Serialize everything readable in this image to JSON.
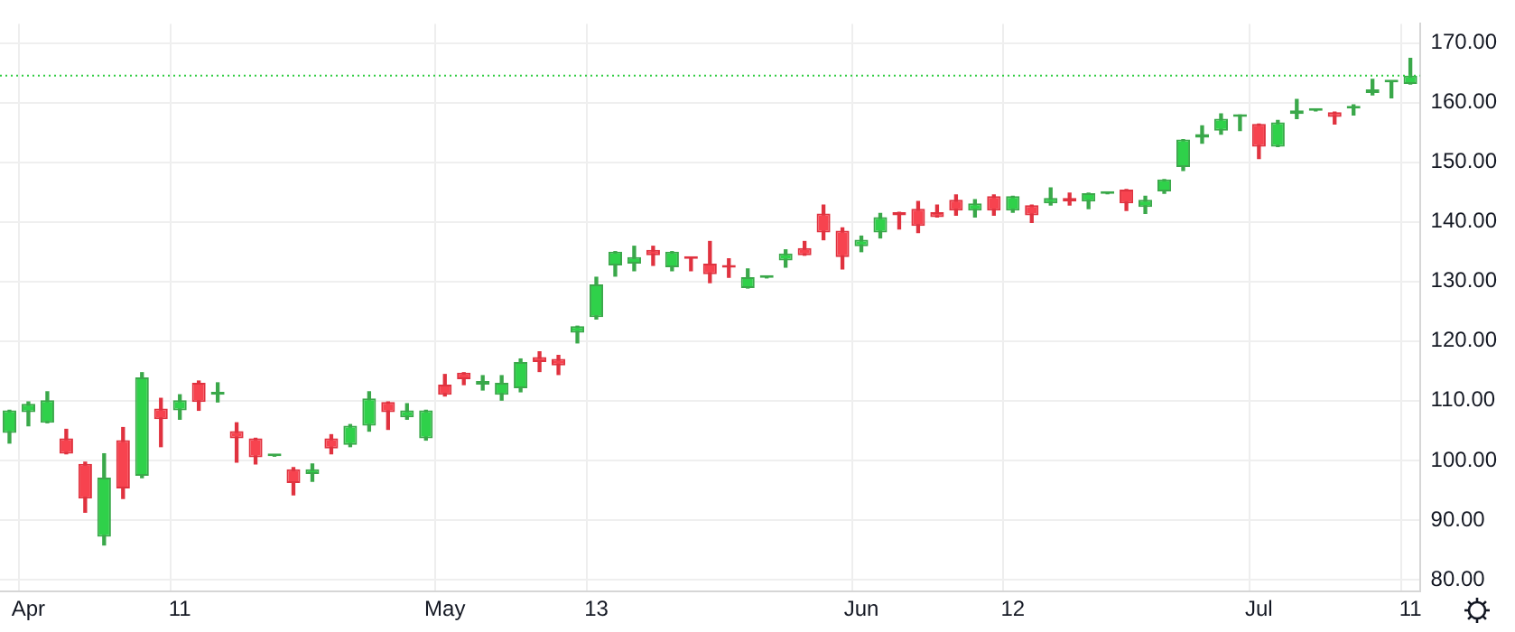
{
  "chart_data": {
    "type": "candlestick",
    "categories": [
      null,
      "Apr",
      null,
      null,
      null,
      null,
      null,
      null,
      null,
      "11",
      null,
      null,
      null,
      null,
      null,
      null,
      null,
      null,
      null,
      null,
      null,
      null,
      null,
      "May",
      null,
      null,
      null,
      null,
      null,
      null,
      null,
      "13",
      null,
      null,
      null,
      null,
      null,
      null,
      null,
      null,
      null,
      null,
      null,
      null,
      null,
      "Jun",
      null,
      null,
      null,
      null,
      null,
      null,
      null,
      "12",
      null,
      null,
      null,
      null,
      null,
      null,
      null,
      null,
      null,
      null,
      null,
      null,
      "Jul",
      null,
      null,
      null,
      null,
      null,
      null,
      null,
      "11"
    ],
    "ohlc": [
      [
        104.6,
        108.4,
        102.9,
        108.4
      ],
      [
        108.1,
        109.8,
        105.8,
        109.5
      ],
      [
        106.3,
        111.5,
        106.3,
        110.1
      ],
      [
        103.7,
        105.2,
        101.1,
        101.1
      ],
      [
        99.4,
        99.7,
        91.3,
        93.6
      ],
      [
        87.2,
        101.1,
        85.8,
        97.1
      ],
      [
        103.4,
        105.5,
        93.6,
        95.3
      ],
      [
        97.4,
        114.7,
        97.1,
        113.9
      ],
      [
        108.7,
        110.4,
        102.3,
        106.9
      ],
      [
        108.4,
        111.0,
        106.9,
        110.1
      ],
      [
        113.0,
        113.3,
        108.4,
        109.8
      ],
      [
        111.0,
        113.0,
        109.8,
        111.5
      ],
      [
        104.9,
        106.3,
        99.7,
        103.7
      ],
      [
        103.7,
        103.7,
        99.4,
        100.5
      ],
      [
        100.7,
        100.9,
        100.7,
        100.9
      ],
      [
        98.5,
        98.8,
        94.2,
        96.2
      ],
      [
        97.7,
        99.4,
        96.5,
        98.5
      ],
      [
        103.7,
        104.3,
        101.1,
        102.0
      ],
      [
        102.6,
        106.0,
        102.3,
        105.8
      ],
      [
        105.8,
        111.5,
        104.9,
        110.4
      ],
      [
        109.8,
        109.8,
        105.2,
        108.1
      ],
      [
        107.2,
        109.5,
        106.9,
        108.4
      ],
      [
        103.7,
        108.4,
        103.4,
        108.4
      ],
      [
        112.7,
        114.4,
        110.8,
        111.0
      ],
      [
        114.7,
        114.7,
        112.7,
        113.6
      ],
      [
        112.7,
        114.2,
        111.8,
        113.3
      ],
      [
        111.0,
        114.2,
        110.1,
        113.0
      ],
      [
        112.1,
        117.0,
        111.5,
        116.5
      ],
      [
        117.3,
        118.2,
        114.9,
        116.5
      ],
      [
        117.0,
        117.6,
        114.4,
        115.9
      ],
      [
        121.4,
        122.5,
        119.7,
        122.5
      ],
      [
        124.0,
        130.7,
        123.7,
        129.5
      ],
      [
        132.7,
        135.0,
        130.9,
        135.0
      ],
      [
        133.0,
        135.9,
        131.8,
        134.1
      ],
      [
        135.3,
        135.9,
        132.7,
        134.4
      ],
      [
        132.4,
        135.0,
        131.8,
        135.0
      ],
      [
        134.0,
        134.0,
        131.8,
        133.8
      ],
      [
        133.0,
        136.7,
        129.8,
        131.2
      ],
      [
        132.5,
        133.8,
        130.7,
        132.3
      ],
      [
        128.9,
        132.1,
        128.9,
        130.7
      ],
      [
        130.6,
        130.8,
        130.6,
        130.8
      ],
      [
        133.5,
        135.3,
        132.4,
        134.7
      ],
      [
        135.6,
        136.7,
        134.4,
        134.4
      ],
      [
        141.4,
        142.8,
        137.0,
        138.2
      ],
      [
        138.5,
        139.0,
        132.1,
        134.1
      ],
      [
        135.9,
        137.6,
        135.0,
        137.0
      ],
      [
        138.2,
        141.4,
        137.3,
        140.8
      ],
      [
        141.6,
        141.6,
        138.8,
        141.1
      ],
      [
        142.2,
        143.4,
        138.2,
        139.3
      ],
      [
        141.6,
        142.8,
        140.8,
        140.8
      ],
      [
        143.7,
        144.5,
        141.1,
        141.9
      ],
      [
        141.9,
        143.7,
        140.8,
        143.1
      ],
      [
        144.3,
        144.5,
        141.1,
        141.9
      ],
      [
        141.9,
        144.3,
        141.6,
        144.3
      ],
      [
        142.8,
        142.8,
        139.9,
        141.1
      ],
      [
        143.1,
        145.7,
        142.8,
        144.0
      ],
      [
        144.0,
        144.8,
        142.8,
        143.4
      ],
      [
        143.4,
        144.8,
        142.2,
        144.8
      ],
      [
        144.7,
        144.9,
        144.7,
        144.9
      ],
      [
        145.4,
        145.4,
        141.9,
        143.1
      ],
      [
        142.5,
        144.3,
        141.4,
        143.7
      ],
      [
        145.1,
        147.1,
        144.8,
        147.1
      ],
      [
        149.2,
        153.8,
        148.6,
        153.8
      ],
      [
        154.1,
        156.1,
        153.2,
        154.7
      ],
      [
        155.3,
        158.1,
        154.7,
        157.3
      ],
      [
        157.6,
        157.9,
        155.3,
        157.9
      ],
      [
        156.4,
        156.4,
        150.6,
        152.6
      ],
      [
        152.6,
        157.0,
        152.6,
        156.7
      ],
      [
        158.1,
        160.5,
        157.3,
        158.7
      ],
      [
        158.6,
        158.8,
        158.6,
        158.8
      ],
      [
        158.4,
        158.4,
        156.4,
        157.6
      ],
      [
        159.0,
        159.6,
        157.9,
        159.3
      ],
      [
        161.6,
        163.9,
        161.3,
        162.2
      ],
      [
        163.4,
        163.6,
        160.8,
        163.6
      ],
      [
        163.1,
        167.4,
        163.1,
        164.5
      ]
    ],
    "ylim": [
      78,
      173.2
    ],
    "yticks": [
      {
        "value": 80,
        "label": "80.00"
      },
      {
        "value": 90,
        "label": "90.00"
      },
      {
        "value": 100,
        "label": "100.00"
      },
      {
        "value": 110,
        "label": "110.00"
      },
      {
        "value": 120,
        "label": "120.00"
      },
      {
        "value": 130,
        "label": "130.00"
      },
      {
        "value": 140,
        "label": "140.00"
      },
      {
        "value": 150,
        "label": "150.00"
      },
      {
        "value": 160,
        "label": "160.00"
      },
      {
        "value": 170,
        "label": "170.00"
      }
    ],
    "ref_lines": [
      {
        "axis": "y",
        "value": 164.5,
        "color": "#2ecc40",
        "line_style": "dotted"
      }
    ],
    "grid": true,
    "legend": false
  }
}
